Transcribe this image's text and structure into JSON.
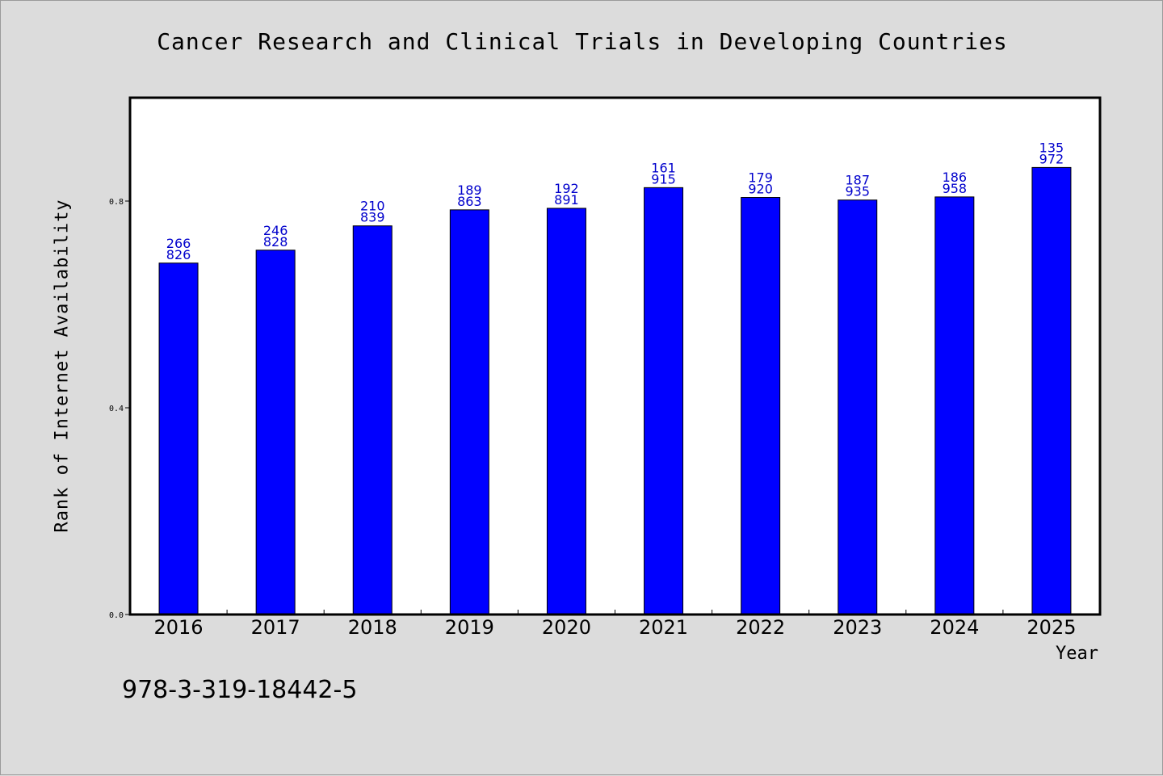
{
  "chart_data": {
    "type": "bar",
    "title": "Cancer Research and Clinical Trials in Developing Countries",
    "xlabel": "Year",
    "ylabel": "Rank of Internet Availability",
    "categories": [
      "2016",
      "2017",
      "2018",
      "2019",
      "2020",
      "2021",
      "2022",
      "2023",
      "2024",
      "2025"
    ],
    "values": [
      0.68,
      0.705,
      0.752,
      0.783,
      0.786,
      0.826,
      0.807,
      0.802,
      0.808,
      0.865
    ],
    "data_labels": [
      [
        "266",
        "826"
      ],
      [
        "246",
        "828"
      ],
      [
        "210",
        "839"
      ],
      [
        "189",
        "863"
      ],
      [
        "192",
        "891"
      ],
      [
        "161",
        "915"
      ],
      [
        "179",
        "920"
      ],
      [
        "187",
        "935"
      ],
      [
        "186",
        "958"
      ],
      [
        "135",
        "972"
      ]
    ],
    "yticks": [
      "0.0",
      "0.4",
      "0.8"
    ],
    "ytick_values": [
      0.0,
      0.4,
      0.8
    ],
    "ylim": [
      0,
      1.0
    ],
    "grid": false,
    "legend": "none",
    "bar_color": "#0000ff",
    "label_color": "#0000cc"
  },
  "footer": {
    "isbn": "978-3-319-18442-5"
  }
}
